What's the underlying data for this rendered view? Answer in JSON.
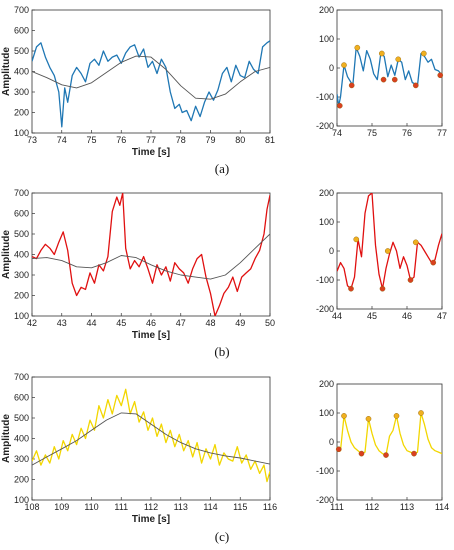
{
  "chart_data": [
    {
      "type": "line",
      "panel": "a-main",
      "xlabel": "Time [s]",
      "ylabel": "Amplitude",
      "xlim": [
        73,
        81
      ],
      "ylim": [
        100,
        700
      ],
      "xticks": [
        73,
        74,
        75,
        76,
        77,
        78,
        79,
        80,
        81
      ],
      "yticks": [
        100,
        200,
        300,
        400,
        500,
        600,
        700
      ],
      "series": [
        {
          "color": "#1f77b4",
          "x": [
            73.0,
            73.15,
            73.3,
            73.45,
            73.6,
            73.75,
            73.9,
            74.0,
            74.1,
            74.2,
            74.35,
            74.5,
            74.65,
            74.8,
            74.95,
            75.1,
            75.25,
            75.4,
            75.55,
            75.7,
            75.85,
            76.0,
            76.15,
            76.3,
            76.45,
            76.6,
            76.75,
            76.9,
            77.05,
            77.2,
            77.35,
            77.5,
            77.65,
            77.8,
            77.95,
            78.05,
            78.2,
            78.35,
            78.5,
            78.65,
            78.8,
            78.95,
            79.1,
            79.25,
            79.4,
            79.55,
            79.7,
            79.85,
            80.0,
            80.15,
            80.3,
            80.45,
            80.6,
            80.75,
            80.9,
            81.0
          ],
          "y": [
            450,
            520,
            540,
            470,
            420,
            380,
            300,
            130,
            320,
            250,
            380,
            420,
            390,
            350,
            440,
            460,
            430,
            500,
            450,
            470,
            480,
            440,
            490,
            520,
            530,
            470,
            510,
            420,
            450,
            390,
            460,
            420,
            300,
            220,
            240,
            200,
            210,
            160,
            230,
            180,
            250,
            300,
            260,
            310,
            390,
            420,
            350,
            430,
            380,
            370,
            450,
            410,
            390,
            520,
            540,
            550
          ]
        },
        {
          "color": "#555555",
          "x": [
            73.0,
            73.5,
            74.0,
            74.5,
            75.0,
            75.5,
            76.0,
            76.5,
            77.0,
            77.5,
            78.0,
            78.5,
            79.0,
            79.5,
            80.0,
            80.5,
            81.0
          ],
          "y": [
            400,
            370,
            335,
            320,
            345,
            395,
            445,
            475,
            470,
            410,
            330,
            270,
            265,
            290,
            350,
            400,
            420
          ]
        }
      ]
    },
    {
      "type": "line",
      "panel": "a-detail",
      "xlim": [
        74,
        77
      ],
      "ylim": [
        -200,
        200
      ],
      "xticks": [
        74,
        75,
        76,
        77
      ],
      "yticks": [
        -200,
        -100,
        0,
        100,
        200
      ],
      "series": [
        {
          "color": "#1f77b4",
          "x": [
            74.0,
            74.05,
            74.1,
            74.2,
            74.3,
            74.45,
            74.55,
            74.65,
            74.75,
            74.85,
            74.95,
            75.05,
            75.15,
            75.25,
            75.35,
            75.45,
            75.55,
            75.65,
            75.75,
            75.85,
            75.95,
            76.05,
            76.15,
            76.3,
            76.4,
            76.5,
            76.6,
            76.7,
            76.8,
            76.9,
            77.0
          ],
          "y": [
            -90,
            -130,
            -100,
            10,
            -30,
            -60,
            70,
            40,
            -10,
            60,
            30,
            -20,
            -40,
            50,
            40,
            -30,
            10,
            -25,
            30,
            20,
            -40,
            -10,
            -50,
            -60,
            50,
            40,
            20,
            30,
            -5,
            -10,
            -25
          ]
        }
      ],
      "peaks": {
        "x": [
          74.2,
          74.58,
          75.28,
          75.75,
          76.48
        ],
        "y": [
          10,
          70,
          50,
          30,
          50
        ],
        "color": "#f0b020"
      },
      "troughs": {
        "x": [
          74.08,
          74.42,
          75.33,
          75.65,
          76.25,
          76.95
        ],
        "y": [
          -130,
          -60,
          -40,
          -40,
          -60,
          -25
        ],
        "color": "#d94020"
      }
    },
    {
      "type": "line",
      "panel": "b-main",
      "xlabel": "Time [s]",
      "ylabel": "Amplitude",
      "xlim": [
        42,
        50
      ],
      "ylim": [
        100,
        700
      ],
      "xticks": [
        42,
        43,
        44,
        45,
        46,
        47,
        48,
        49,
        50
      ],
      "yticks": [
        100,
        200,
        300,
        400,
        500,
        600,
        700
      ],
      "series": [
        {
          "color": "#e01010",
          "x": [
            42.0,
            42.15,
            42.3,
            42.45,
            42.6,
            42.75,
            42.9,
            43.05,
            43.2,
            43.35,
            43.5,
            43.65,
            43.8,
            43.95,
            44.1,
            44.25,
            44.4,
            44.55,
            44.7,
            44.85,
            44.95,
            45.05,
            45.15,
            45.3,
            45.45,
            45.6,
            45.75,
            45.9,
            46.05,
            46.2,
            46.35,
            46.5,
            46.65,
            46.8,
            46.95,
            47.1,
            47.25,
            47.4,
            47.55,
            47.7,
            47.85,
            48.0,
            48.15,
            48.3,
            48.45,
            48.6,
            48.75,
            48.9,
            49.05,
            49.2,
            49.35,
            49.5,
            49.65,
            49.8,
            49.9,
            50.0
          ],
          "y": [
            390,
            380,
            420,
            450,
            430,
            400,
            460,
            510,
            420,
            260,
            200,
            240,
            230,
            310,
            260,
            350,
            320,
            390,
            610,
            680,
            640,
            700,
            430,
            330,
            370,
            340,
            390,
            330,
            260,
            350,
            300,
            340,
            270,
            360,
            330,
            310,
            260,
            330,
            380,
            400,
            290,
            210,
            100,
            150,
            210,
            240,
            290,
            220,
            290,
            310,
            330,
            380,
            420,
            500,
            620,
            690
          ]
        },
        {
          "color": "#555555",
          "x": [
            42.0,
            42.5,
            43.0,
            43.5,
            44.0,
            44.5,
            45.0,
            45.5,
            46.0,
            46.5,
            47.0,
            47.5,
            48.0,
            48.5,
            49.0,
            49.5,
            50.0
          ],
          "y": [
            380,
            385,
            370,
            340,
            335,
            360,
            395,
            385,
            350,
            320,
            300,
            290,
            280,
            300,
            360,
            430,
            500
          ]
        }
      ]
    },
    {
      "type": "line",
      "panel": "b-detail",
      "xlim": [
        44,
        47
      ],
      "ylim": [
        -200,
        200
      ],
      "xticks": [
        44,
        45,
        46,
        47
      ],
      "yticks": [
        -200,
        -100,
        0,
        100,
        200
      ],
      "series": [
        {
          "color": "#e01010",
          "x": [
            44.0,
            44.1,
            44.2,
            44.3,
            44.4,
            44.5,
            44.6,
            44.7,
            44.8,
            44.9,
            45.0,
            45.1,
            45.2,
            45.3,
            45.4,
            45.5,
            45.6,
            45.7,
            45.8,
            45.9,
            46.0,
            46.1,
            46.2,
            46.3,
            46.4,
            46.5,
            46.6,
            46.7,
            46.8,
            46.9,
            47.0
          ],
          "y": [
            -70,
            -40,
            -60,
            -120,
            -130,
            -90,
            40,
            -20,
            130,
            190,
            200,
            20,
            -80,
            -130,
            -60,
            -10,
            30,
            0,
            -60,
            -20,
            -50,
            -100,
            -90,
            30,
            20,
            0,
            -20,
            -40,
            -30,
            20,
            60
          ]
        }
      ],
      "peaks": {
        "x": [
          44.55,
          45.45,
          46.25
        ],
        "y": [
          40,
          0,
          30
        ],
        "color": "#f0b020"
      },
      "troughs": {
        "x": [
          44.4,
          45.3,
          46.1,
          46.75
        ],
        "y": [
          -130,
          -130,
          -100,
          -40
        ],
        "color": "#d94020"
      }
    },
    {
      "type": "line",
      "panel": "c-main",
      "xlabel": "Time [s]",
      "ylabel": "Amplitude",
      "xlim": [
        108,
        116
      ],
      "ylim": [
        100,
        700
      ],
      "xticks": [
        108,
        109,
        110,
        111,
        112,
        113,
        114,
        115,
        116
      ],
      "yticks": [
        100,
        200,
        300,
        400,
        500,
        600,
        700
      ],
      "series": [
        {
          "color": "#f2d600",
          "x": [
            108.0,
            108.15,
            108.3,
            108.45,
            108.6,
            108.75,
            108.9,
            109.05,
            109.2,
            109.35,
            109.5,
            109.65,
            109.8,
            109.95,
            110.1,
            110.25,
            110.4,
            110.55,
            110.7,
            110.85,
            111.0,
            111.15,
            111.3,
            111.45,
            111.6,
            111.75,
            111.9,
            112.05,
            112.2,
            112.35,
            112.5,
            112.65,
            112.8,
            112.95,
            113.1,
            113.25,
            113.4,
            113.55,
            113.7,
            113.85,
            114.0,
            114.15,
            114.3,
            114.45,
            114.6,
            114.75,
            114.9,
            115.05,
            115.2,
            115.35,
            115.5,
            115.65,
            115.8,
            115.9,
            116.0
          ],
          "y": [
            290,
            340,
            270,
            320,
            280,
            360,
            300,
            390,
            340,
            420,
            370,
            450,
            400,
            490,
            440,
            560,
            500,
            590,
            520,
            610,
            560,
            640,
            520,
            580,
            480,
            530,
            440,
            500,
            410,
            470,
            380,
            440,
            360,
            420,
            340,
            390,
            310,
            380,
            280,
            350,
            300,
            370,
            270,
            330,
            300,
            290,
            360,
            280,
            320,
            250,
            290,
            230,
            270,
            190,
            240
          ]
        },
        {
          "color": "#555555",
          "x": [
            108.0,
            108.5,
            109.0,
            109.5,
            110.0,
            110.5,
            111.0,
            111.5,
            112.0,
            112.5,
            113.0,
            113.5,
            114.0,
            114.5,
            115.0,
            115.5,
            116.0
          ],
          "y": [
            270,
            310,
            350,
            390,
            440,
            490,
            525,
            520,
            470,
            420,
            380,
            350,
            330,
            315,
            305,
            290,
            275
          ]
        }
      ]
    },
    {
      "type": "line",
      "panel": "c-detail",
      "xlim": [
        111,
        114
      ],
      "ylim": [
        -200,
        200
      ],
      "xticks": [
        111,
        112,
        113,
        114
      ],
      "yticks": [
        -200,
        -100,
        0,
        100,
        200
      ],
      "series": [
        {
          "color": "#f2d600",
          "x": [
            111.0,
            111.1,
            111.2,
            111.3,
            111.4,
            111.5,
            111.6,
            111.7,
            111.8,
            111.9,
            112.0,
            112.1,
            112.2,
            112.3,
            112.4,
            112.5,
            112.6,
            112.7,
            112.8,
            112.9,
            113.0,
            113.1,
            113.2,
            113.3,
            113.4,
            113.5,
            113.6,
            113.7,
            113.8,
            113.9,
            114.0
          ],
          "y": [
            -20,
            -30,
            90,
            40,
            0,
            -20,
            -30,
            -40,
            -35,
            80,
            30,
            -10,
            -30,
            -40,
            -45,
            20,
            40,
            90,
            30,
            -10,
            -30,
            -35,
            -40,
            -35,
            100,
            60,
            10,
            -20,
            -30,
            -35,
            -40
          ]
        }
      ],
      "peaks": {
        "x": [
          111.2,
          111.9,
          112.7,
          113.4
        ],
        "y": [
          90,
          80,
          90,
          100
        ],
        "color": "#f0b020"
      },
      "troughs": {
        "x": [
          111.05,
          111.7,
          112.4,
          113.2
        ],
        "y": [
          -25,
          -40,
          -45,
          -40
        ],
        "color": "#d94020"
      }
    }
  ],
  "captions": [
    "(a)",
    "(b)",
    "(c)"
  ]
}
